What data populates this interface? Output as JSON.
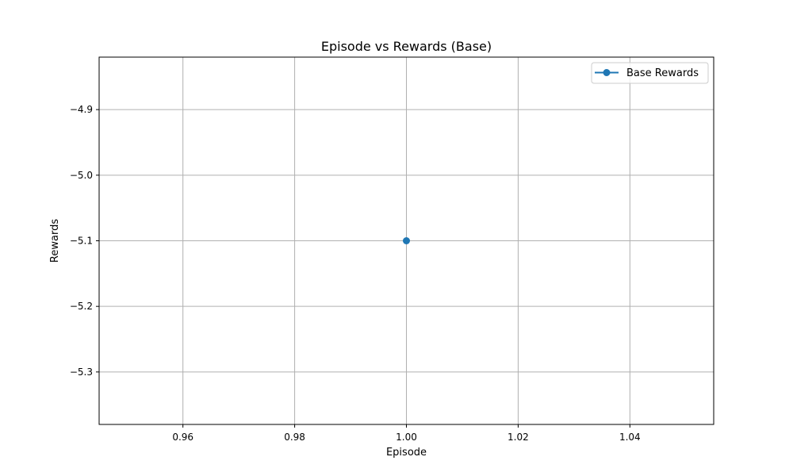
{
  "chart_data": {
    "type": "line",
    "title": "Episode vs Rewards (Base)",
    "xlabel": "Episode",
    "ylabel": "Rewards",
    "xlim": [
      0.945,
      1.055
    ],
    "ylim": [
      -5.38,
      -4.82
    ],
    "xticks": [
      0.96,
      0.98,
      1.0,
      1.02,
      1.04
    ],
    "xtick_labels": [
      "0.96",
      "0.98",
      "1.00",
      "1.02",
      "1.04"
    ],
    "yticks": [
      -4.9,
      -5.0,
      -5.1,
      -5.2,
      -5.3
    ],
    "ytick_labels": [
      "−4.9",
      "−5.0",
      "−5.1",
      "−5.2",
      "−5.3"
    ],
    "grid": true,
    "legend_position": "top-right",
    "series": [
      {
        "name": "Base Rewards",
        "color": "#1f77b4",
        "marker": "circle",
        "points": [
          {
            "x": 1.0,
            "y": -5.1
          }
        ]
      }
    ]
  }
}
